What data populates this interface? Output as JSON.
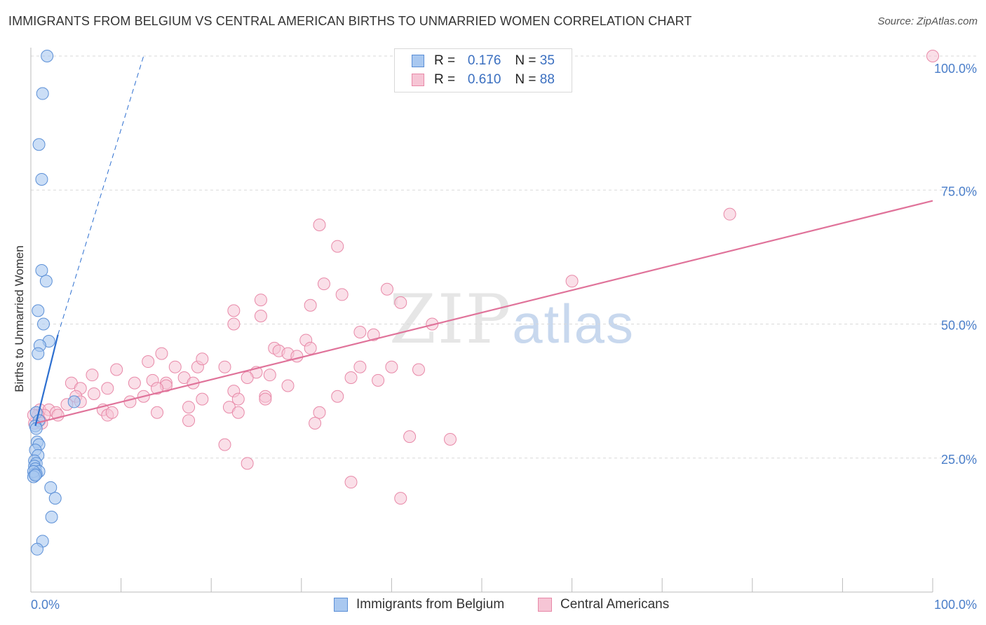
{
  "title": "IMMIGRANTS FROM BELGIUM VS CENTRAL AMERICAN BIRTHS TO UNMARRIED WOMEN CORRELATION CHART",
  "source": "Source: ZipAtlas.com",
  "watermark": {
    "zip": "ZIP",
    "atlas": "atlas"
  },
  "legend": {
    "belgium": {
      "r_label": "R =",
      "r_value": "0.176",
      "n_label": "N =",
      "n_value": "35"
    },
    "central": {
      "r_label": "R =",
      "r_value": "0.610",
      "n_label": "N =",
      "n_value": "88"
    }
  },
  "bottom_legend": {
    "belgium": "Immigrants from Belgium",
    "central": "Central Americans"
  },
  "colors": {
    "belgium_fill": "#a9c8f0",
    "belgium_stroke": "#5b8fd6",
    "belgium_line": "#2d6fd0",
    "central_fill": "#f6c5d5",
    "central_stroke": "#e889a8",
    "central_line": "#e0739a",
    "tick_label": "#4a7ec9",
    "grid": "#d9d9d9"
  },
  "chart_data": {
    "type": "scatter",
    "title": "IMMIGRANTS FROM BELGIUM VS CENTRAL AMERICAN BIRTHS TO UNMARRIED WOMEN CORRELATION CHART",
    "xlabel": "",
    "ylabel": "Births to Unmarried Women",
    "xlim": [
      0,
      100
    ],
    "ylim": [
      0,
      100
    ],
    "x_tick_labels": [
      "0.0%",
      "100.0%"
    ],
    "y_tick_labels": [
      {
        "value": 25,
        "label": "25.0%"
      },
      {
        "value": 50,
        "label": "50.0%"
      },
      {
        "value": 75,
        "label": "75.0%"
      },
      {
        "value": 100,
        "label": "100.0%"
      }
    ],
    "grid": true,
    "legend_position": "top-center",
    "series": [
      {
        "name": "Immigrants from Belgium",
        "r": 0.176,
        "n": 35,
        "trend_solid": [
          [
            0.5,
            31.0
          ],
          [
            3.0,
            48.0
          ]
        ],
        "trend_dashed": [
          [
            3.0,
            48.0
          ],
          [
            12.5,
            100.0
          ]
        ],
        "points": [
          [
            1.8,
            100.0
          ],
          [
            1.3,
            93.0
          ],
          [
            0.9,
            83.5
          ],
          [
            1.2,
            77.0
          ],
          [
            1.2,
            60.0
          ],
          [
            1.7,
            58.0
          ],
          [
            0.8,
            52.5
          ],
          [
            1.4,
            50.0
          ],
          [
            2.0,
            46.8
          ],
          [
            1.0,
            46.0
          ],
          [
            0.8,
            44.5
          ],
          [
            4.8,
            35.5
          ],
          [
            0.6,
            33.5
          ],
          [
            0.9,
            32.0
          ],
          [
            0.5,
            31.0
          ],
          [
            0.6,
            30.5
          ],
          [
            0.7,
            28.0
          ],
          [
            0.9,
            27.5
          ],
          [
            0.5,
            26.5
          ],
          [
            0.8,
            25.5
          ],
          [
            0.4,
            24.5
          ],
          [
            0.6,
            24.0
          ],
          [
            0.4,
            23.5
          ],
          [
            0.5,
            23.0
          ],
          [
            0.9,
            22.5
          ],
          [
            0.4,
            22.0
          ],
          [
            0.6,
            22.0
          ],
          [
            0.3,
            22.5
          ],
          [
            0.3,
            21.5
          ],
          [
            0.5,
            21.8
          ],
          [
            2.2,
            19.5
          ],
          [
            2.7,
            17.5
          ],
          [
            2.3,
            14.0
          ],
          [
            1.3,
            9.5
          ],
          [
            0.7,
            8.0
          ]
        ]
      },
      {
        "name": "Central Americans",
        "r": 0.61,
        "n": 88,
        "trend": [
          [
            0.5,
            31.5
          ],
          [
            100.0,
            73.0
          ]
        ],
        "points": [
          [
            100.0,
            100.0
          ],
          [
            77.5,
            70.5
          ],
          [
            32.0,
            68.5
          ],
          [
            34.0,
            64.5
          ],
          [
            60.0,
            58.0
          ],
          [
            32.5,
            57.5
          ],
          [
            39.5,
            56.5
          ],
          [
            34.5,
            55.5
          ],
          [
            25.5,
            54.5
          ],
          [
            41.0,
            54.0
          ],
          [
            31.0,
            53.5
          ],
          [
            22.5,
            52.5
          ],
          [
            25.5,
            51.5
          ],
          [
            22.5,
            50.0
          ],
          [
            44.5,
            50.0
          ],
          [
            36.5,
            48.5
          ],
          [
            38.0,
            48.0
          ],
          [
            30.5,
            47.0
          ],
          [
            27.0,
            45.5
          ],
          [
            27.5,
            45.0
          ],
          [
            28.5,
            44.5
          ],
          [
            31.0,
            45.5
          ],
          [
            14.5,
            44.5
          ],
          [
            29.5,
            44.0
          ],
          [
            13.0,
            43.0
          ],
          [
            16.0,
            42.0
          ],
          [
            18.5,
            42.0
          ],
          [
            36.5,
            42.0
          ],
          [
            40.0,
            42.0
          ],
          [
            21.5,
            42.0
          ],
          [
            9.5,
            41.5
          ],
          [
            25.0,
            41.0
          ],
          [
            26.5,
            40.5
          ],
          [
            6.8,
            40.5
          ],
          [
            17.0,
            40.0
          ],
          [
            24.0,
            40.0
          ],
          [
            38.5,
            39.5
          ],
          [
            11.5,
            39.0
          ],
          [
            13.5,
            39.5
          ],
          [
            15.0,
            39.0
          ],
          [
            4.5,
            39.0
          ],
          [
            15.0,
            38.5
          ],
          [
            14.0,
            38.0
          ],
          [
            8.5,
            38.0
          ],
          [
            5.5,
            38.0
          ],
          [
            28.5,
            38.5
          ],
          [
            22.5,
            37.5
          ],
          [
            7.0,
            37.0
          ],
          [
            12.5,
            36.5
          ],
          [
            26.0,
            36.5
          ],
          [
            34.0,
            36.5
          ],
          [
            5.0,
            36.5
          ],
          [
            19.0,
            36.0
          ],
          [
            23.0,
            36.0
          ],
          [
            26.0,
            36.0
          ],
          [
            11.0,
            35.5
          ],
          [
            4.0,
            35.0
          ],
          [
            1.0,
            34.0
          ],
          [
            17.5,
            34.5
          ],
          [
            22.0,
            34.5
          ],
          [
            8.0,
            34.0
          ],
          [
            2.0,
            34.0
          ],
          [
            14.0,
            33.5
          ],
          [
            23.0,
            33.5
          ],
          [
            8.5,
            33.0
          ],
          [
            9.0,
            33.5
          ],
          [
            2.8,
            33.5
          ],
          [
            32.0,
            33.5
          ],
          [
            1.5,
            33.0
          ],
          [
            0.8,
            33.0
          ],
          [
            1.0,
            32.0
          ],
          [
            17.5,
            32.0
          ],
          [
            0.4,
            31.5
          ],
          [
            1.2,
            31.5
          ],
          [
            31.5,
            31.5
          ],
          [
            0.3,
            33.0
          ],
          [
            42.0,
            29.0
          ],
          [
            46.5,
            28.5
          ],
          [
            21.5,
            27.5
          ],
          [
            24.0,
            24.0
          ],
          [
            35.5,
            20.5
          ],
          [
            41.0,
            17.5
          ],
          [
            3.0,
            33.0
          ],
          [
            5.5,
            35.5
          ],
          [
            18.0,
            39.0
          ],
          [
            35.5,
            40.0
          ],
          [
            43.0,
            41.5
          ],
          [
            19.0,
            43.5
          ]
        ]
      }
    ]
  }
}
